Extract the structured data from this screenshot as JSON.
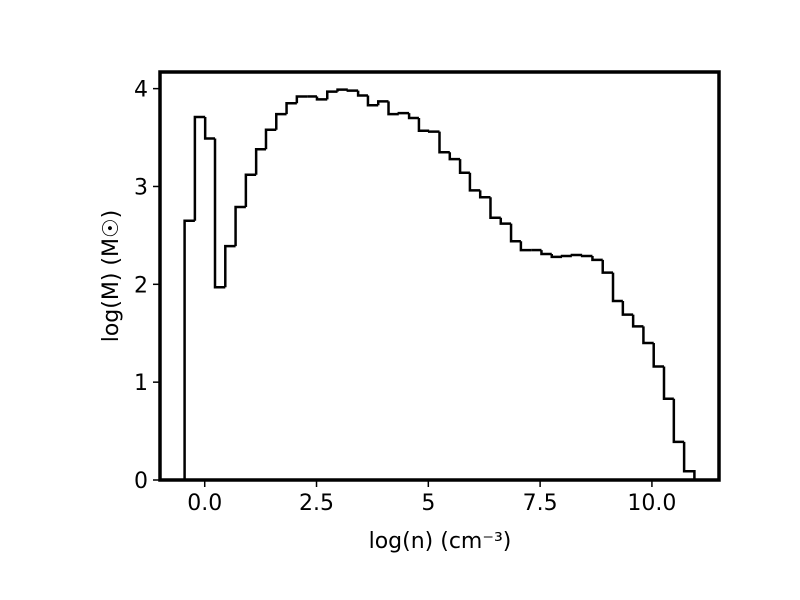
{
  "chart_data": {
    "type": "histogram",
    "x_label": "log(n) (cm⁻³)",
    "y_label": "log(M) (M☉)",
    "bins": [
      -0.45,
      -0.22,
      0.01,
      0.23,
      0.46,
      0.69,
      0.92,
      1.15,
      1.37,
      1.6,
      1.83,
      2.06,
      2.29,
      2.51,
      2.74,
      2.97,
      3.2,
      3.43,
      3.65,
      3.88,
      4.11,
      4.34,
      4.57,
      4.79,
      5.02,
      5.25,
      5.48,
      5.71,
      5.93,
      6.16,
      6.39,
      6.62,
      6.85,
      7.07,
      7.3,
      7.53,
      7.76,
      7.99,
      8.21,
      8.44,
      8.67,
      8.9,
      9.13,
      9.35,
      9.58,
      9.81,
      10.04,
      10.27,
      10.49,
      10.72,
      10.95
    ],
    "values": [
      2.65,
      3.71,
      3.49,
      1.97,
      2.39,
      2.79,
      3.12,
      3.38,
      3.58,
      3.74,
      3.85,
      3.92,
      3.92,
      3.89,
      3.97,
      3.99,
      3.98,
      3.93,
      3.83,
      3.87,
      3.74,
      3.75,
      3.7,
      3.57,
      3.56,
      3.35,
      3.28,
      3.14,
      2.96,
      2.89,
      2.68,
      2.62,
      2.44,
      2.35,
      2.35,
      2.31,
      2.28,
      2.29,
      2.3,
      2.29,
      2.25,
      2.12,
      1.83,
      1.69,
      1.57,
      1.4,
      1.16,
      0.83,
      0.39,
      0.09
    ],
    "color": "#000000",
    "xlim": [
      -1.0,
      11.5
    ],
    "ylim": [
      0,
      4.17
    ],
    "xticks": [
      {
        "value": 0,
        "label": "0.0"
      },
      2.5,
      5.0,
      7.5,
      {
        "value": 10,
        "label": "10.0"
      }
    ],
    "yticks": [
      0,
      1,
      2,
      3,
      4
    ]
  }
}
